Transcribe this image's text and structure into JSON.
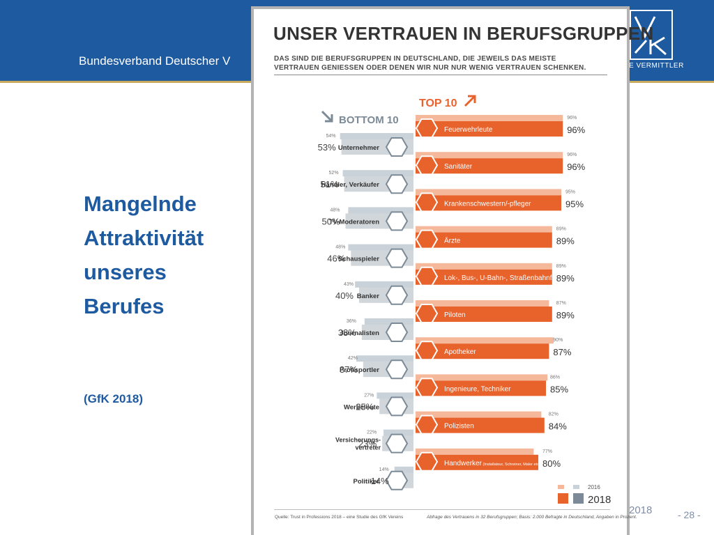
{
  "header": {
    "org_name": "Bundesverband Deutscher V",
    "logo_sub": "E VERMITTLER"
  },
  "slide": {
    "title_lines": [
      "Mangelnde",
      "Attraktivität",
      "unseres",
      "Berufes"
    ],
    "source_note": "(GfK 2018)",
    "footer_year": "2018",
    "page_number": "- 28 -"
  },
  "colors": {
    "header": "#1e5aa0",
    "accent_gold": "#c9a95a",
    "top_2018": "#e8622c",
    "top_2016": "#f5b89a",
    "bottom_2018": "#7b8a96",
    "bottom_2016": "#c9d2d9"
  },
  "chart_data": {
    "type": "bar",
    "title": "UNSER VERTRAUEN IN BERUFSGRUPPEN",
    "subtitle": "DAS SIND DIE BERUFSGRUPPEN IN DEUTSCHLAND, DIE JEWEILS DAS MEISTE VERTRAUEN GENIESSEN ODER DENEN WIR NUR NUR WENIG VERTRAUEN SCHENKEN.",
    "value_unit": "%",
    "series_names": [
      "2016",
      "2018"
    ],
    "bottom_label": "BOTTOM 10",
    "top_label": "TOP 10",
    "bottom": [
      {
        "name": "Unternehmer",
        "v2016": 54,
        "v2018": 53,
        "icon": "businessman-icon"
      },
      {
        "name": "Händler, Verkäufer",
        "v2016": 52,
        "v2018": 51,
        "icon": "calculator-icon"
      },
      {
        "name": "TV-Moderatoren",
        "v2016": 48,
        "v2018": 50,
        "icon": "presenter-icon"
      },
      {
        "name": "Schauspieler",
        "v2016": 48,
        "v2018": 46,
        "icon": "theater-masks-icon"
      },
      {
        "name": "Banker",
        "v2016": 43,
        "v2018": 40,
        "icon": "bar-chart-icon"
      },
      {
        "name": "Journalisten",
        "v2016": 36,
        "v2018": 38,
        "icon": "newspaper-icon"
      },
      {
        "name": "Profisportler",
        "v2016": 42,
        "v2018": 37,
        "icon": "soccer-ball-icon"
      },
      {
        "name": "Werbeleute",
        "v2016": 27,
        "v2018": 25,
        "icon": "billboard-icon"
      },
      {
        "name": "Versicherungs-\nvertreter",
        "v2016": 22,
        "v2018": 23,
        "icon": "shield-icon"
      },
      {
        "name": "Politiker",
        "v2016": 14,
        "v2018": 14,
        "icon": "lectern-icon"
      }
    ],
    "top": [
      {
        "name": "Feuerwehrleute",
        "v2016": 96,
        "v2018": 96,
        "icon": "firefighter-icon"
      },
      {
        "name": "Sanitäter",
        "v2016": 96,
        "v2018": 96,
        "icon": "ambulance-icon"
      },
      {
        "name": "Krankenschwestern/-pfleger",
        "v2016": 95,
        "v2018": 95,
        "icon": "nurse-icon"
      },
      {
        "name": "Ärzte",
        "v2016": 89,
        "v2018": 89,
        "icon": "doctor-icon"
      },
      {
        "name": "Lok-, Bus-, U-Bahn-, Straßenbahnführer",
        "v2016": 89,
        "v2018": 89,
        "icon": "tram-icon"
      },
      {
        "name": "Piloten",
        "v2016": 87,
        "v2018": 89,
        "icon": "airplane-icon"
      },
      {
        "name": "Apotheker",
        "v2016": 90,
        "v2018": 87,
        "icon": "pharmacy-icon"
      },
      {
        "name": "Ingenieure, Techniker",
        "v2016": 86,
        "v2018": 85,
        "icon": "robot-arm-icon"
      },
      {
        "name": "Polizisten",
        "v2016": 82,
        "v2018": 84,
        "icon": "police-light-icon"
      },
      {
        "name": "Handwerker",
        "name_note": "(Installateur, Schreiner, Maler etc.)",
        "v2016": 77,
        "v2018": 80,
        "icon": "tools-icon"
      }
    ],
    "footer_left": "Quelle: Trust in Professions 2018 – eine Studie des GfK Vereins",
    "footer_right": "Abfrage des Vertrauens in 32 Berufsgruppen; Basis: 2.000 Befragte in Deutschland, Angaben in Prozent."
  }
}
